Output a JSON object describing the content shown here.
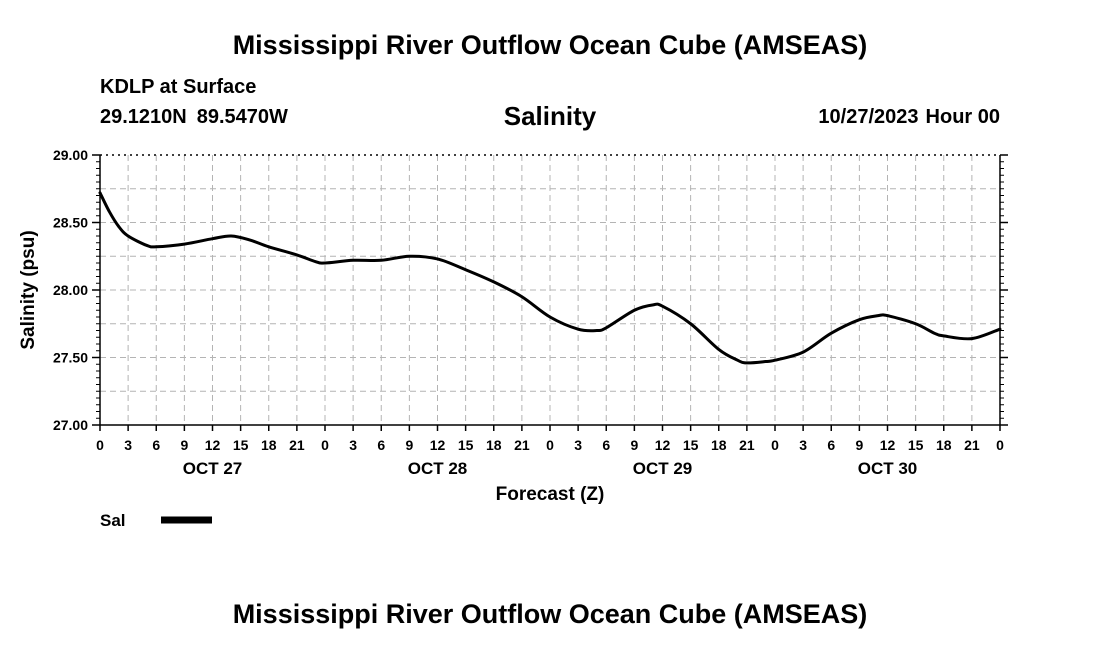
{
  "header": {
    "title": "Mississippi River Outflow Ocean Cube (AMSEAS)",
    "station": "KDLP at Surface",
    "lat": "29.1210N",
    "lon": "89.5470W",
    "variable": "Salinity",
    "date": "10/27/2023",
    "hour": "Hour 00"
  },
  "footer": {
    "title": "Mississippi River Outflow Ocean Cube (AMSEAS)"
  },
  "chart_data": {
    "type": "line",
    "title": "Salinity",
    "xlabel": "Forecast (Z)",
    "ylabel": "Salinity (psu)",
    "xlim": [
      0,
      96
    ],
    "ylim": [
      27.0,
      29.0
    ],
    "y_ticks": [
      "27.00",
      "27.50",
      "28.00",
      "28.50",
      "29.00"
    ],
    "x_tick_labels": [
      "0",
      "3",
      "6",
      "9",
      "12",
      "15",
      "18",
      "21",
      "0",
      "3",
      "6",
      "9",
      "12",
      "15",
      "18",
      "21",
      "0",
      "3",
      "6",
      "9",
      "12",
      "15",
      "18",
      "21",
      "0",
      "3",
      "6",
      "9",
      "12",
      "15",
      "18",
      "21",
      "0"
    ],
    "day_labels": [
      {
        "label": "OCT 27",
        "hour": 12
      },
      {
        "label": "OCT 28",
        "hour": 36
      },
      {
        "label": "OCT 29",
        "hour": 60
      },
      {
        "label": "OCT 30",
        "hour": 84
      }
    ],
    "grid": true,
    "legend": {
      "position": "bottom-left",
      "entries": [
        "Sal"
      ]
    },
    "series": [
      {
        "name": "Sal",
        "color": "#000000",
        "x": [
          0,
          1,
          2,
          3,
          5,
          6,
          9,
          12,
          14,
          16,
          18,
          21,
          23,
          24,
          27,
          30,
          33,
          36,
          39,
          42,
          45,
          48,
          51,
          53,
          54,
          57,
          59,
          60,
          63,
          66,
          68,
          69,
          71,
          72,
          75,
          78,
          81,
          83,
          84,
          87,
          89,
          90,
          93,
          96
        ],
        "values": [
          28.72,
          28.58,
          28.47,
          28.4,
          28.33,
          28.32,
          28.34,
          28.38,
          28.4,
          28.37,
          28.32,
          28.26,
          28.21,
          28.2,
          28.22,
          28.22,
          28.25,
          28.23,
          28.15,
          28.06,
          27.95,
          27.8,
          27.71,
          27.7,
          27.72,
          27.85,
          27.89,
          27.88,
          27.75,
          27.56,
          27.48,
          27.46,
          27.47,
          27.48,
          27.54,
          27.68,
          27.78,
          27.81,
          27.81,
          27.75,
          27.68,
          27.66,
          27.64,
          27.71
        ]
      }
    ]
  }
}
